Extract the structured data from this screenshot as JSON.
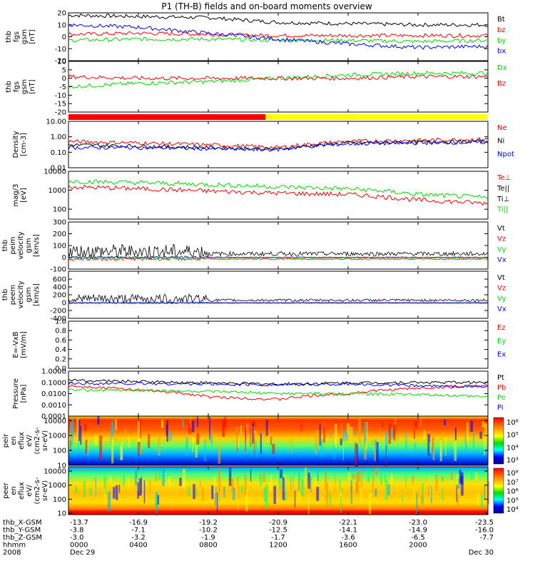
{
  "title": "P1 (TH-B) fields and on-board moments overview",
  "colors": {
    "black": "#000000",
    "red": "#ff0000",
    "green": "#00dd00",
    "blue": "#0000ff",
    "yellow": "#ffff00"
  },
  "panels": [
    {
      "id": "fgs",
      "ylabel": [
        "thb",
        "fgs",
        "gsm",
        "[nT]"
      ],
      "ymin": -20,
      "ymax": 20,
      "log": false,
      "ticks": [
        "20",
        "10",
        "0",
        "-10",
        "-20"
      ],
      "tickvals": [
        20,
        10,
        0,
        -10,
        -20
      ],
      "legend": [
        {
          "label": "Bt",
          "color": "black"
        },
        {
          "label": "bz",
          "color": "red"
        },
        {
          "label": "by",
          "color": "green"
        },
        {
          "label": "bx",
          "color": "blue"
        }
      ]
    },
    {
      "id": "fgs_dsl",
      "ylabel": [
        "thb",
        "fgs",
        "gsm",
        "[nT]"
      ],
      "ymin": -20,
      "ymax": 10,
      "log": false,
      "ticks": [
        "10",
        "5",
        "0",
        "-5",
        "-10",
        "-15",
        "-20"
      ],
      "tickvals": [
        10,
        5,
        0,
        -5,
        -10,
        -15,
        -20
      ],
      "legend": [
        {
          "label": "Dx",
          "color": "green"
        },
        {
          "label": "Bz",
          "color": "red"
        }
      ]
    },
    {
      "id": "density",
      "ylabel": [
        "Density",
        "[cm-3]"
      ],
      "ymin": 0.01,
      "ymax": 10,
      "log": true,
      "ticks": [
        "10.00",
        "1.00",
        "0.10",
        "0.01"
      ],
      "tickvals": [
        10,
        1,
        0.1,
        0.01
      ],
      "legend": [
        {
          "label": "Ne",
          "color": "red"
        },
        {
          "label": "Ni",
          "color": "black"
        },
        {
          "label": "Npot",
          "color": "blue"
        }
      ]
    },
    {
      "id": "temp",
      "ylabel": [
        "mag/3",
        "[eV]"
      ],
      "ymin": 30,
      "ymax": 10000,
      "log": true,
      "ticks": [
        "10000",
        "1000",
        "100"
      ],
      "tickvals": [
        10000,
        1000,
        100
      ],
      "legend": [
        {
          "label": "Te⊥",
          "color": "red"
        },
        {
          "label": "Te||",
          "color": "black"
        },
        {
          "label": "Ti⊥",
          "color": "black"
        },
        {
          "label": "Ti||",
          "color": "green"
        }
      ]
    },
    {
      "id": "peim",
      "ylabel": [
        "thb",
        "peim",
        "velocity",
        "gsm",
        "[km/s]"
      ],
      "ymin": -100,
      "ymax": 300,
      "log": false,
      "ticks": [
        "300",
        "200",
        "100",
        "0",
        "-100"
      ],
      "tickvals": [
        300,
        200,
        100,
        0,
        -100
      ],
      "legend": [
        {
          "label": "Vt",
          "color": "black"
        },
        {
          "label": "Vz",
          "color": "red"
        },
        {
          "label": "Vy",
          "color": "green"
        },
        {
          "label": "Vx",
          "color": "blue"
        }
      ]
    },
    {
      "id": "peem",
      "ylabel": [
        "thb",
        "peem",
        "velocity",
        "gsm",
        "[km/s]"
      ],
      "ymin": -400,
      "ymax": 800,
      "log": false,
      "ticks": [
        "600",
        "400",
        "200",
        "0",
        "-200",
        "-400"
      ],
      "tickvals": [
        600,
        400,
        200,
        0,
        -200,
        -400
      ],
      "legend": [
        {
          "label": "Vt",
          "color": "black"
        },
        {
          "label": "Vz",
          "color": "red"
        },
        {
          "label": "Vy",
          "color": "green"
        },
        {
          "label": "Vx",
          "color": "blue"
        }
      ]
    },
    {
      "id": "efield",
      "ylabel": [
        "E=-VxB",
        "[mV/m]"
      ],
      "ymin": 0,
      "ymax": 1,
      "log": false,
      "ticks": [
        "1.0",
        "0.8",
        "0.6",
        "0.4",
        "0.2",
        "0.0"
      ],
      "tickvals": [
        1,
        0.8,
        0.6,
        0.4,
        0.2,
        0
      ],
      "legend": [
        {
          "label": "Ez",
          "color": "red"
        },
        {
          "label": "Ey",
          "color": "green"
        },
        {
          "label": "Ex",
          "color": "blue"
        }
      ]
    },
    {
      "id": "pressure",
      "ylabel": [
        "Pressure",
        "[nPa]"
      ],
      "ymin": 0.0001,
      "ymax": 1,
      "log": true,
      "ticks": [
        "1.0000",
        "0.1000",
        "0.0100",
        "0.0010",
        "0.0001"
      ],
      "tickvals": [
        1,
        0.1,
        0.01,
        0.001,
        0.0001
      ],
      "legend": [
        {
          "label": "Pt",
          "color": "black"
        },
        {
          "label": "Pb",
          "color": "red"
        },
        {
          "label": "Pe",
          "color": "green"
        },
        {
          "label": "Pi",
          "color": "blue"
        }
      ]
    },
    {
      "id": "peir",
      "ylabel": [
        "thb",
        "peir",
        "en",
        "eflux",
        "eV/",
        "(cm2-s-",
        "sr-eV)"
      ],
      "ymin": 10,
      "ymax": 20000,
      "log": true,
      "ticks": [
        "10000",
        "1000",
        "100",
        "10"
      ],
      "tickvals": [
        10000,
        1000,
        100,
        10
      ],
      "colorbar": [
        "10⁶",
        "10⁵",
        "10⁴",
        "10³"
      ]
    },
    {
      "id": "peer",
      "ylabel": [
        "thb",
        "peer",
        "en",
        "eflux",
        "eV/",
        "(cm2-s-",
        "sr-eV)"
      ],
      "ymin": 8,
      "ymax": 20000,
      "log": true,
      "ticks": [
        "10000",
        "1000",
        "100",
        "10"
      ],
      "tickvals": [
        10000,
        1000,
        100,
        10
      ],
      "colorbar": [
        "10⁸",
        "10⁷",
        "10⁶",
        "10⁵",
        "10⁴"
      ]
    }
  ],
  "bar_legend": {
    "colors": [
      "red",
      "yellow"
    ],
    "split": 0.47
  },
  "ephemeris": {
    "rows": [
      {
        "label": "thb_X-GSM",
        "values": [
          "-13.7",
          "-16.9",
          "-19.2",
          "-20.9",
          "-22.1",
          "-23.0",
          "-23.5"
        ]
      },
      {
        "label": "thb_Y-GSM",
        "values": [
          "-3.8",
          "-7.1",
          "-10.2",
          "-12.5",
          "-14.1",
          "-14.9",
          "-16.0"
        ]
      },
      {
        "label": "thb_Z-GSM",
        "values": [
          "-3.0",
          "-3.2",
          "-1.9",
          "-1.7",
          "-3.6",
          "-6.5",
          "-7.7"
        ]
      },
      {
        "label": "hhmm",
        "values": [
          "0000",
          "0400",
          "0800",
          "1200",
          "1600",
          "2000",
          ""
        ]
      },
      {
        "label": "2008",
        "values": [
          "Dec 29",
          "",
          "",
          "",
          "",
          "",
          "Dec 30"
        ]
      }
    ]
  },
  "chart_data": {
    "type": "line",
    "title": "P1 (TH-B) fields and on-board moments overview",
    "x_hours": [
      0,
      4,
      8,
      12,
      16,
      20,
      24
    ],
    "x_ticklabels": [
      "0000",
      "0400",
      "0800",
      "1200",
      "1600",
      "2000",
      ""
    ],
    "series": [
      {
        "panel": "fgs",
        "name": "Bt",
        "color": "black",
        "values": [
          18,
          17,
          16,
          12,
          11,
          10,
          10
        ]
      },
      {
        "panel": "fgs",
        "name": "bz",
        "color": "red",
        "values": [
          2,
          3,
          2,
          1,
          1,
          1,
          1
        ]
      },
      {
        "panel": "fgs",
        "name": "by",
        "color": "green",
        "values": [
          -3,
          -2,
          -2,
          -3,
          -3,
          -4,
          -3
        ]
      },
      {
        "panel": "fgs",
        "name": "bx",
        "color": "blue",
        "values": [
          10,
          8,
          3,
          -2,
          -6,
          -9,
          -8
        ]
      },
      {
        "panel": "fgs_dsl",
        "name": "Dx",
        "color": "green",
        "values": [
          -5,
          -3,
          -2,
          0,
          2,
          3,
          3
        ]
      },
      {
        "panel": "fgs_dsl",
        "name": "Bz",
        "color": "red",
        "values": [
          1,
          0,
          0,
          0,
          0,
          1,
          1
        ]
      },
      {
        "panel": "density",
        "name": "Ne",
        "color": "red",
        "values": [
          0.5,
          0.4,
          0.3,
          0.2,
          0.5,
          0.6,
          0.7
        ]
      },
      {
        "panel": "density",
        "name": "Ni",
        "color": "black",
        "values": [
          0.3,
          0.25,
          0.2,
          0.15,
          0.4,
          0.45,
          0.5
        ]
      },
      {
        "panel": "density",
        "name": "Npot",
        "color": "blue",
        "values": [
          0.2,
          0.2,
          0.17,
          0.15,
          0.35,
          0.4,
          0.45
        ]
      },
      {
        "panel": "temp",
        "name": "Te⊥",
        "color": "red",
        "values": [
          1500,
          1200,
          900,
          700,
          600,
          300,
          200
        ]
      },
      {
        "panel": "temp",
        "name": "Ti||",
        "color": "green",
        "values": [
          3000,
          2500,
          2000,
          1500,
          1200,
          600,
          400
        ]
      },
      {
        "panel": "pressure",
        "name": "Pt",
        "color": "black",
        "values": [
          0.15,
          0.12,
          0.09,
          0.07,
          0.09,
          0.1,
          0.1
        ]
      },
      {
        "panel": "pressure",
        "name": "Pb",
        "color": "red",
        "values": [
          0.05,
          0.02,
          0.005,
          0.003,
          0.01,
          0.03,
          0.05
        ]
      },
      {
        "panel": "pressure",
        "name": "Pe",
        "color": "green",
        "values": [
          0.02,
          0.02,
          0.015,
          0.01,
          0.01,
          0.008,
          0.005
        ]
      },
      {
        "panel": "pressure",
        "name": "Pi",
        "color": "blue",
        "values": [
          0.08,
          0.08,
          0.07,
          0.06,
          0.07,
          0.05,
          0.04
        ]
      }
    ]
  }
}
